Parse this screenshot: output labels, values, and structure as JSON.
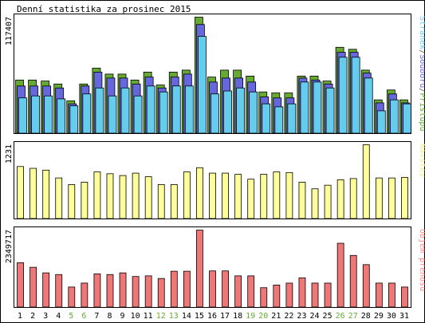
{
  "title": "Denní statistika za prosinec 2015",
  "chart_data": [
    {
      "type": "bar",
      "name": "top",
      "max_label": "117407",
      "ylim": [
        0,
        117407
      ],
      "legend": {
        "items": [
          {
            "text": "Stránek",
            "color": "#66ccee"
          },
          {
            "text": "/",
            "color": "#555555"
          },
          {
            "text": "Souborů",
            "color": "#6666dd"
          },
          {
            "text": "/",
            "color": "#555555"
          },
          {
            "text": "Přístupů",
            "color": "#66aa33"
          }
        ],
        "placement": "right"
      },
      "series": [
        {
          "name": "Přístupů",
          "color": "#66aa33",
          "values": [
            54000,
            54000,
            53000,
            50000,
            33000,
            50000,
            66000,
            60000,
            60000,
            54000,
            62000,
            49000,
            62000,
            64000,
            117407,
            57000,
            64000,
            64000,
            58000,
            42000,
            41000,
            41000,
            58000,
            58000,
            53000,
            87000,
            85000,
            64000,
            34000,
            44000,
            34000
          ]
        },
        {
          "name": "Souborů",
          "color": "#6666dd",
          "values": [
            48000,
            48000,
            48000,
            46000,
            30000,
            48000,
            62000,
            56000,
            56000,
            50000,
            57000,
            46000,
            57000,
            60000,
            110000,
            52000,
            56000,
            56000,
            52000,
            37000,
            36000,
            36000,
            56000,
            54000,
            50000,
            82000,
            82000,
            61000,
            31000,
            40000,
            31000
          ]
        },
        {
          "name": "Stránek",
          "color": "#66ccee",
          "values": [
            36000,
            38000,
            38000,
            35000,
            28000,
            40000,
            46000,
            38000,
            46000,
            38000,
            48000,
            42000,
            48000,
            48000,
            98000,
            40000,
            43000,
            46000,
            42000,
            30000,
            27000,
            30000,
            52000,
            52000,
            46000,
            77000,
            77000,
            56000,
            23000,
            34000,
            30000
          ]
        }
      ]
    },
    {
      "type": "bar",
      "name": "middle",
      "max_label": "1231",
      "ylim": [
        0,
        1231
      ],
      "legend": {
        "items": [
          {
            "text": "Návštěv",
            "color": "#eeee88"
          }
        ],
        "placement": "right"
      },
      "series": [
        {
          "name": "Návštěv",
          "color": "#ffff99",
          "values": [
            870,
            840,
            810,
            680,
            570,
            610,
            780,
            750,
            720,
            760,
            700,
            570,
            570,
            780,
            850,
            760,
            760,
            740,
            660,
            740,
            780,
            770,
            610,
            500,
            560,
            650,
            670,
            1231,
            680,
            680,
            690
          ]
        }
      ]
    },
    {
      "type": "bar",
      "name": "bottom",
      "max_label": "2349717",
      "ylim": [
        0,
        2349717
      ],
      "legend": {
        "items": [
          {
            "text": "Objem přenosu",
            "color": "#ff8888"
          }
        ],
        "placement": "right"
      },
      "series": [
        {
          "name": "Objem přenosu",
          "color": "#ef7777",
          "values": [
            1360000,
            1220000,
            1050000,
            1000000,
            620000,
            740000,
            1020000,
            1000000,
            1050000,
            940000,
            960000,
            880000,
            1100000,
            1100000,
            2349717,
            1110000,
            1110000,
            960000,
            960000,
            600000,
            680000,
            740000,
            900000,
            740000,
            740000,
            1950000,
            1580000,
            1300000,
            740000,
            740000,
            620000
          ]
        }
      ]
    }
  ],
  "days": [
    {
      "label": "1",
      "weekend": false
    },
    {
      "label": "2",
      "weekend": false
    },
    {
      "label": "3",
      "weekend": false
    },
    {
      "label": "4",
      "weekend": false
    },
    {
      "label": "5",
      "weekend": true
    },
    {
      "label": "6",
      "weekend": true
    },
    {
      "label": "7",
      "weekend": false
    },
    {
      "label": "8",
      "weekend": false
    },
    {
      "label": "9",
      "weekend": false
    },
    {
      "label": "10",
      "weekend": false
    },
    {
      "label": "11",
      "weekend": false
    },
    {
      "label": "12",
      "weekend": true
    },
    {
      "label": "13",
      "weekend": true
    },
    {
      "label": "14",
      "weekend": false
    },
    {
      "label": "15",
      "weekend": false
    },
    {
      "label": "16",
      "weekend": false
    },
    {
      "label": "17",
      "weekend": false
    },
    {
      "label": "18",
      "weekend": false
    },
    {
      "label": "19",
      "weekend": true
    },
    {
      "label": "20",
      "weekend": true
    },
    {
      "label": "21",
      "weekend": false
    },
    {
      "label": "22",
      "weekend": false
    },
    {
      "label": "23",
      "weekend": false
    },
    {
      "label": "24",
      "weekend": false
    },
    {
      "label": "25",
      "weekend": false
    },
    {
      "label": "26",
      "weekend": true
    },
    {
      "label": "27",
      "weekend": true
    },
    {
      "label": "28",
      "weekend": false
    },
    {
      "label": "29",
      "weekend": false
    },
    {
      "label": "30",
      "weekend": false
    },
    {
      "label": "31",
      "weekend": false
    }
  ],
  "colors": {
    "weekday_label": "#000000",
    "weekend_label": "#66aa33",
    "border": "#000000",
    "background": "#ffffff"
  }
}
